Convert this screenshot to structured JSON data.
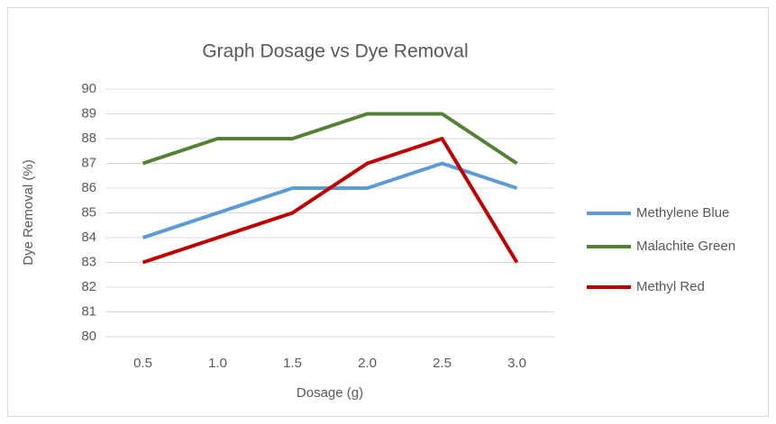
{
  "chart_data": {
    "type": "line",
    "title": "Graph Dosage vs Dye Removal",
    "x_label": "Dosage (g)",
    "y_label": "Dye Removal (%)",
    "categories": [
      "0.5",
      "1.0",
      "1.5",
      "2.0",
      "2.5",
      "3.0"
    ],
    "series": [
      {
        "name": "Methylene Blue",
        "color": "#5b9bd5",
        "values": [
          84,
          85,
          86,
          86,
          87,
          86
        ]
      },
      {
        "name": "Malachite Green",
        "color": "#548235",
        "values": [
          87,
          88,
          88,
          89,
          89,
          87
        ]
      },
      {
        "name": "Methyl Red",
        "color": "#c00000",
        "values": [
          83,
          84,
          85,
          87,
          88,
          83
        ]
      }
    ],
    "ylim": [
      80,
      90
    ],
    "yticks": [
      80,
      81,
      82,
      83,
      84,
      85,
      86,
      87,
      88,
      89,
      90
    ],
    "grid": true,
    "legend": "right"
  }
}
